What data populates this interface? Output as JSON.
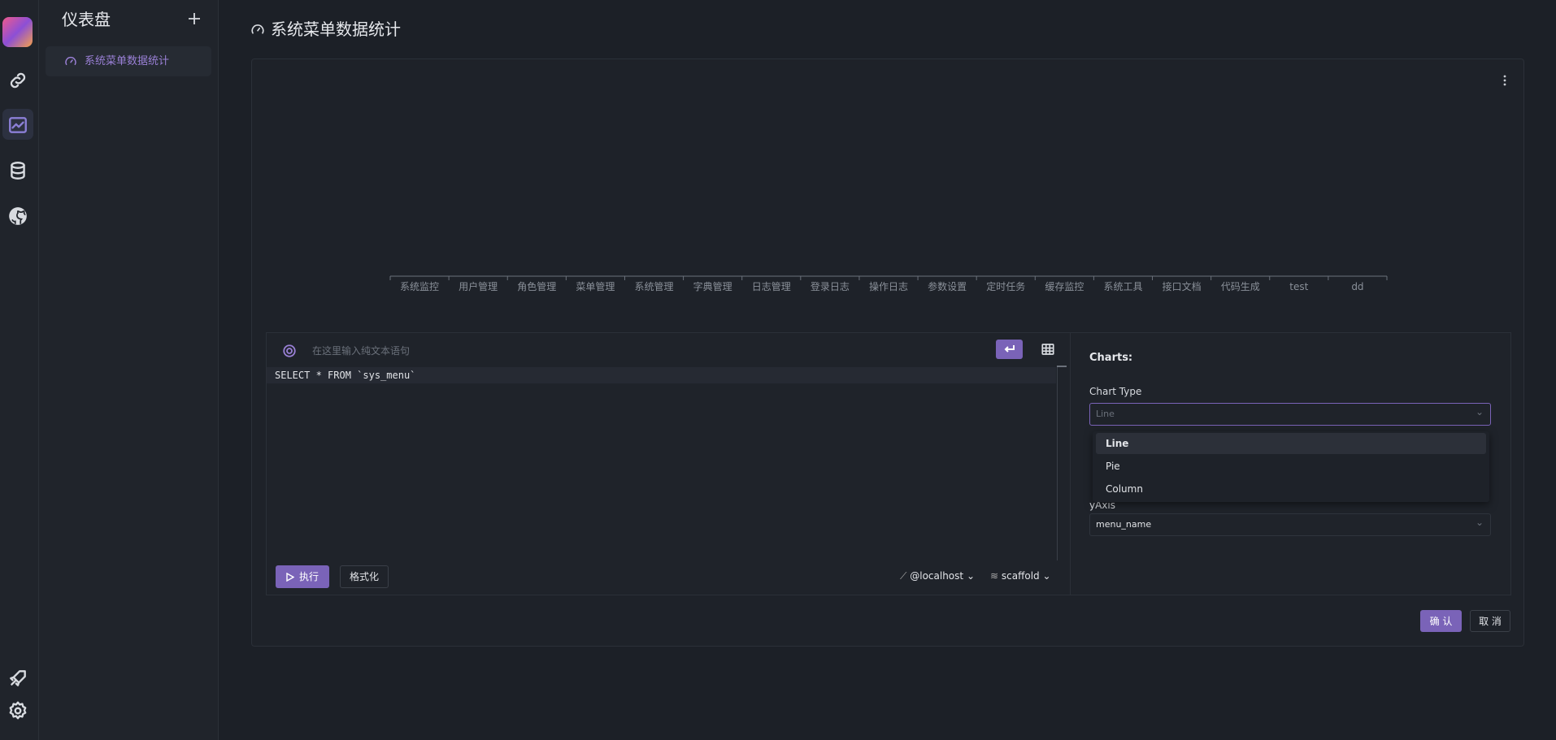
{
  "sidebar": {
    "title": "仪表盘",
    "items": [
      "系统菜单数据统计"
    ]
  },
  "page": {
    "title": "系统菜单数据统计"
  },
  "chart": {
    "categories": [
      "系统监控",
      "用户管理",
      "角色管理",
      "菜单管理",
      "系统管理",
      "字典管理",
      "日志管理",
      "登录日志",
      "操作日志",
      "参数设置",
      "定时任务",
      "缓存监控",
      "系统工具",
      "接口文档",
      "代码生成",
      "test",
      "dd"
    ]
  },
  "editor": {
    "placeholder": "在这里输入纯文本语句",
    "sql": "SELECT * FROM `sys_menu`",
    "run": "执行",
    "format": "格式化",
    "host": "@localhost",
    "database": "scaffold"
  },
  "settings": {
    "heading": "Charts:",
    "chart_type_label": "Chart Type",
    "chart_type_value": "Line",
    "options": [
      "Line",
      "Pie",
      "Column"
    ],
    "y_axis_label": "yAxis",
    "y_axis_value": "menu_name"
  },
  "actions": {
    "confirm": "确 认",
    "cancel": "取 消"
  }
}
